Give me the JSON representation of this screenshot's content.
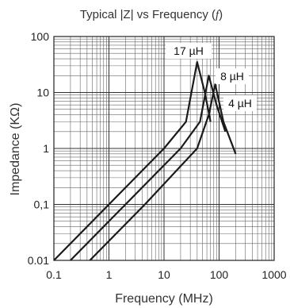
{
  "chart_data": {
    "type": "line",
    "title_parts": [
      "Typical |Z| vs Frequency (",
      "f",
      ")"
    ],
    "xlabel": "Frequency (MHz)",
    "ylabel": "Impedance (KΩ)",
    "x_scale": "log",
    "y_scale": "log",
    "xlim": [
      0.1,
      1000
    ],
    "ylim": [
      0.01,
      100
    ],
    "x_ticks": [
      {
        "value": 0.1,
        "label": "0.1"
      },
      {
        "value": 1,
        "label": "1"
      },
      {
        "value": 10,
        "label": "10"
      },
      {
        "value": 100,
        "label": "100"
      },
      {
        "value": 1000,
        "label": "1000"
      }
    ],
    "y_ticks": [
      {
        "value": 0.01,
        "label": "0.01"
      },
      {
        "value": 0.1,
        "label": "0,1"
      },
      {
        "value": 1,
        "label": "1"
      },
      {
        "value": 10,
        "label": "10"
      },
      {
        "value": 100,
        "label": "100"
      }
    ],
    "grid": true,
    "series": [
      {
        "name": "17 µH",
        "points": [
          [
            0.1,
            0.01
          ],
          [
            1,
            0.1
          ],
          [
            10,
            1
          ],
          [
            25,
            3
          ],
          [
            40,
            35
          ],
          [
            55,
            10
          ],
          [
            70,
            3
          ]
        ]
      },
      {
        "name": "8 µH",
        "points": [
          [
            0.2,
            0.01
          ],
          [
            2,
            0.1
          ],
          [
            20,
            1
          ],
          [
            45,
            3
          ],
          [
            65,
            20
          ],
          [
            90,
            6
          ],
          [
            130,
            2
          ]
        ]
      },
      {
        "name": "4 µH",
        "points": [
          [
            0.45,
            0.01
          ],
          [
            4.5,
            0.1
          ],
          [
            40,
            1
          ],
          [
            65,
            4
          ],
          [
            85,
            14
          ],
          [
            120,
            3
          ],
          [
            200,
            0.8
          ]
        ]
      }
    ]
  }
}
